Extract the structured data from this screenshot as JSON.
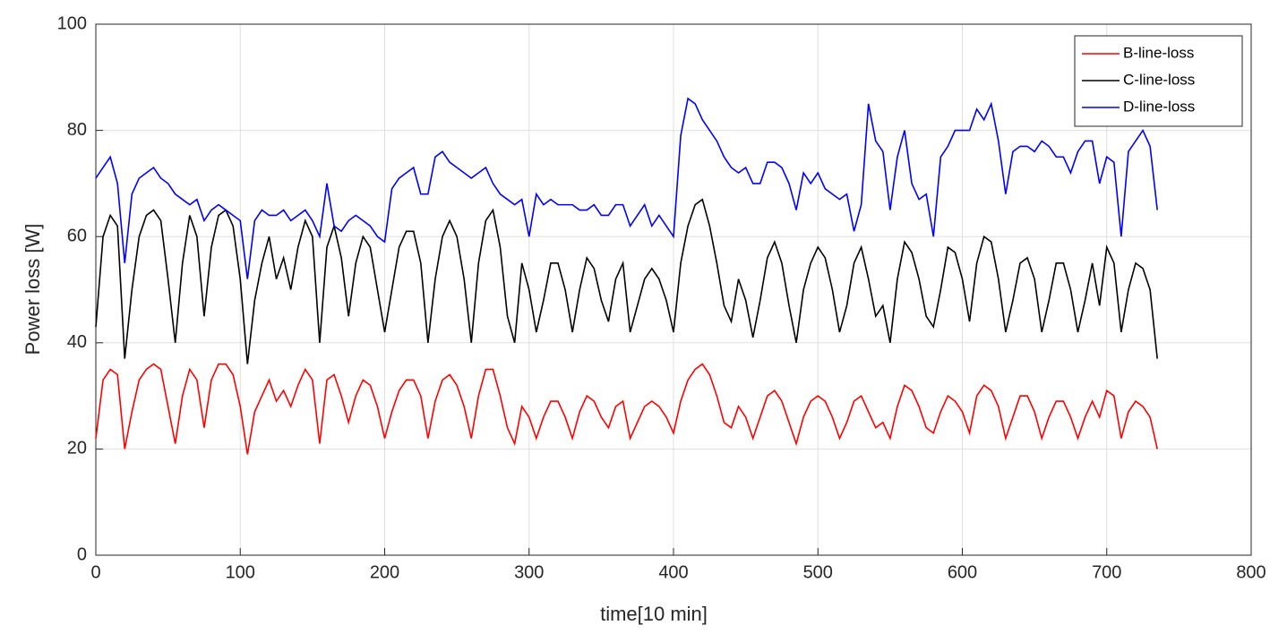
{
  "chart_data": {
    "type": "line",
    "xlabel": "time[10 min]",
    "ylabel": "Power loss [W]",
    "x": [
      0,
      5,
      10,
      15,
      20,
      25,
      30,
      35,
      40,
      45,
      50,
      55,
      60,
      65,
      70,
      75,
      80,
      85,
      90,
      95,
      100,
      105,
      110,
      115,
      120,
      125,
      130,
      135,
      140,
      145,
      150,
      155,
      160,
      165,
      170,
      175,
      180,
      185,
      190,
      195,
      200,
      205,
      210,
      215,
      220,
      225,
      230,
      235,
      240,
      245,
      250,
      255,
      260,
      265,
      270,
      275,
      280,
      285,
      290,
      295,
      300,
      305,
      310,
      315,
      320,
      325,
      330,
      335,
      340,
      345,
      350,
      355,
      360,
      365,
      370,
      375,
      380,
      385,
      390,
      395,
      400,
      405,
      410,
      415,
      420,
      425,
      430,
      435,
      440,
      445,
      450,
      455,
      460,
      465,
      470,
      475,
      480,
      485,
      490,
      495,
      500,
      505,
      510,
      515,
      520,
      525,
      530,
      535,
      540,
      545,
      550,
      555,
      560,
      565,
      570,
      575,
      580,
      585,
      590,
      595,
      600,
      605,
      610,
      615,
      620,
      625,
      630,
      635,
      640,
      645,
      650,
      655,
      660,
      665,
      670,
      675,
      680,
      685,
      690,
      695,
      700,
      705,
      710,
      715,
      720,
      725,
      730,
      735
    ],
    "series": [
      {
        "name": "B-line-loss",
        "color": "#ff0000",
        "values": [
          22,
          33,
          35,
          34,
          20,
          27,
          33,
          35,
          36,
          35,
          28,
          21,
          30,
          35,
          33,
          24,
          33,
          36,
          36,
          34,
          28,
          19,
          27,
          30,
          33,
          29,
          31,
          28,
          32,
          35,
          33,
          21,
          33,
          34,
          30,
          25,
          30,
          33,
          32,
          28,
          22,
          27,
          31,
          33,
          33,
          30,
          22,
          29,
          33,
          34,
          32,
          28,
          22,
          30,
          35,
          35,
          30,
          24,
          21,
          28,
          26,
          22,
          26,
          29,
          29,
          26,
          22,
          27,
          30,
          29,
          26,
          24,
          28,
          29,
          22,
          25,
          28,
          29,
          28,
          26,
          23,
          29,
          33,
          35,
          36,
          34,
          30,
          25,
          24,
          28,
          26,
          22,
          26,
          30,
          31,
          29,
          25,
          21,
          26,
          29,
          30,
          29,
          26,
          22,
          25,
          29,
          30,
          27,
          24,
          25,
          22,
          28,
          32,
          31,
          28,
          24,
          23,
          27,
          30,
          29,
          27,
          23,
          30,
          32,
          31,
          28,
          22,
          26,
          30,
          30,
          27,
          22,
          26,
          29,
          29,
          26,
          22,
          26,
          29,
          26,
          31,
          30,
          22,
          27,
          29,
          28,
          26,
          20
        ]
      },
      {
        "name": "C-line-loss",
        "color": "#000000",
        "values": [
          43,
          60,
          64,
          62,
          37,
          50,
          60,
          64,
          65,
          63,
          52,
          40,
          55,
          64,
          60,
          45,
          58,
          64,
          65,
          62,
          52,
          36,
          48,
          55,
          60,
          52,
          56,
          50,
          58,
          63,
          60,
          40,
          58,
          62,
          56,
          45,
          55,
          60,
          58,
          50,
          42,
          50,
          58,
          61,
          61,
          55,
          40,
          52,
          60,
          63,
          60,
          52,
          40,
          55,
          63,
          65,
          58,
          45,
          40,
          55,
          50,
          42,
          48,
          55,
          55,
          50,
          42,
          50,
          56,
          54,
          48,
          44,
          52,
          55,
          42,
          47,
          52,
          54,
          52,
          48,
          42,
          55,
          62,
          66,
          67,
          62,
          55,
          47,
          44,
          52,
          48,
          41,
          48,
          56,
          59,
          55,
          47,
          40,
          50,
          55,
          58,
          56,
          50,
          42,
          47,
          55,
          58,
          52,
          45,
          47,
          40,
          52,
          59,
          57,
          52,
          45,
          43,
          50,
          58,
          57,
          52,
          44,
          55,
          60,
          59,
          52,
          42,
          48,
          55,
          56,
          52,
          42,
          48,
          55,
          55,
          50,
          42,
          48,
          55,
          47,
          58,
          55,
          42,
          50,
          55,
          54,
          50,
          37
        ]
      },
      {
        "name": "D-line-loss",
        "color": "#0000ff",
        "values": [
          71,
          73,
          75,
          70,
          55,
          68,
          71,
          72,
          73,
          71,
          70,
          68,
          67,
          66,
          67,
          63,
          65,
          66,
          65,
          64,
          63,
          52,
          63,
          65,
          64,
          64,
          65,
          63,
          64,
          65,
          63,
          60,
          70,
          62,
          61,
          63,
          64,
          63,
          62,
          60,
          59,
          69,
          71,
          72,
          73,
          68,
          68,
          75,
          76,
          74,
          73,
          72,
          71,
          72,
          73,
          70,
          68,
          67,
          66,
          67,
          60,
          68,
          66,
          67,
          66,
          66,
          66,
          65,
          65,
          66,
          64,
          64,
          66,
          66,
          62,
          64,
          66,
          62,
          64,
          62,
          60,
          79,
          86,
          85,
          82,
          80,
          78,
          75,
          73,
          72,
          73,
          70,
          70,
          74,
          74,
          73,
          70,
          65,
          72,
          70,
          72,
          69,
          68,
          67,
          68,
          61,
          66,
          85,
          78,
          76,
          65,
          75,
          80,
          70,
          67,
          68,
          60,
          75,
          77,
          80,
          80,
          80,
          84,
          82,
          85,
          78,
          68,
          76,
          77,
          77,
          76,
          78,
          77,
          75,
          75,
          72,
          76,
          78,
          78,
          70,
          75,
          74,
          60,
          76,
          78,
          80,
          77,
          65
        ]
      }
    ],
    "xlim": [
      0,
      800
    ],
    "xticks": [
      0,
      100,
      200,
      300,
      400,
      500,
      600,
      700,
      800
    ],
    "ylim": [
      0,
      100
    ],
    "yticks": [
      0,
      20,
      40,
      60,
      80,
      100
    ],
    "grid": true,
    "legend": "top-right"
  }
}
